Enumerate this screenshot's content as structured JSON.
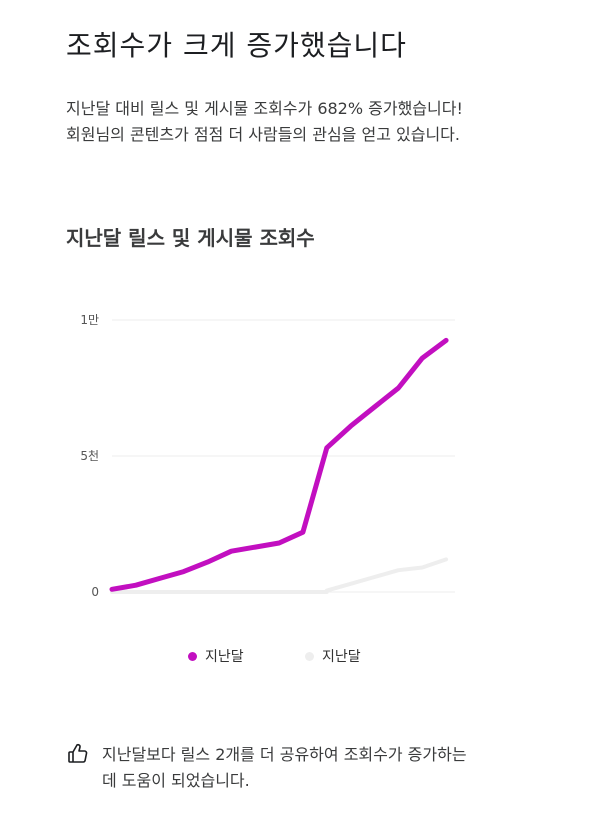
{
  "header": {
    "title": "조회수가 크게 증가했습니다",
    "description_line1": "지난달 대비 릴스 및 게시물 조회수가 682% 증가했습니다!",
    "description_line2": "회원님의 콘텐츠가 점점 더 사람들의 관심을 얻고 있습니다."
  },
  "chart_title": "지난달 릴스 및 게시물 조회수",
  "chart_data": {
    "type": "line",
    "title": "지난달 릴스 및 게시물 조회수",
    "ylim": [
      0,
      10000
    ],
    "y_ticks": [
      {
        "value": 0,
        "label": "0"
      },
      {
        "value": 5000,
        "label": "5천"
      },
      {
        "value": 10000,
        "label": "1만"
      }
    ],
    "x": [
      1,
      2,
      3,
      4,
      5,
      6,
      7,
      8,
      9,
      10,
      11,
      12,
      13,
      14,
      15,
      16
    ],
    "series": [
      {
        "name": "지난달",
        "color": "#c20fc0",
        "values": [
          100,
          250,
          500,
          750,
          1100,
          1500,
          1650,
          1800,
          2200,
          5300,
          6100,
          6800,
          7500,
          8600,
          9250,
          null
        ]
      },
      {
        "name": "지난달",
        "color": "#eeeeee",
        "values": [
          null,
          null,
          null,
          null,
          null,
          null,
          null,
          null,
          null,
          50,
          300,
          550,
          800,
          900,
          1200,
          null
        ]
      }
    ],
    "grid": true,
    "legend": "bottom"
  },
  "legend": [
    {
      "label": "지난달",
      "color": "#c20fc0"
    },
    {
      "label": "지난달",
      "color": "#eeeeee"
    }
  ],
  "tip": {
    "icon": "thumbs-up-icon",
    "line1": "지난달보다 릴스 2개를 더 공유하여 조회수가 증가하는",
    "line2": "데 도움이 되었습니다."
  }
}
